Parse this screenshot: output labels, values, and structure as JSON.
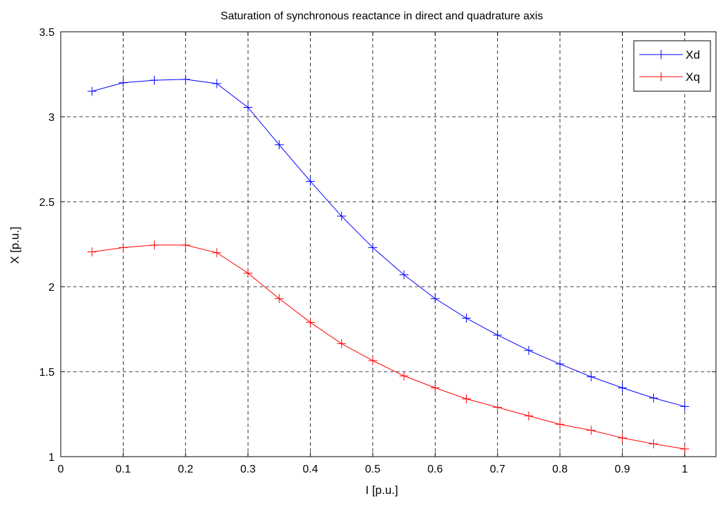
{
  "chart_data": {
    "type": "line",
    "title": "Saturation of synchronous reactance in direct and quadrature axis",
    "xlabel": "I [p.u.]",
    "ylabel": "X [p.u.]",
    "xlim": [
      0,
      1.05
    ],
    "ylim": [
      1,
      3.5
    ],
    "xticks": [
      "0",
      "0.1",
      "0.2",
      "0.3",
      "0.4",
      "0.5",
      "0.6",
      "0.7",
      "0.8",
      "0.9",
      "1"
    ],
    "yticks": [
      "1",
      "1.5",
      "2",
      "2.5",
      "3",
      "3.5"
    ],
    "xtick_values": [
      0,
      0.1,
      0.2,
      0.3,
      0.4,
      0.5,
      0.6,
      0.7,
      0.8,
      0.9,
      1.0
    ],
    "ytick_values": [
      1,
      1.5,
      2,
      2.5,
      3,
      3.5
    ],
    "grid": true,
    "legend_position": "top-right",
    "marker": "+",
    "x": [
      0.05,
      0.1,
      0.15,
      0.2,
      0.25,
      0.3,
      0.35,
      0.4,
      0.45,
      0.5,
      0.55,
      0.6,
      0.65,
      0.7,
      0.75,
      0.8,
      0.85,
      0.9,
      0.95,
      1.0
    ],
    "series": [
      {
        "name": "Xd",
        "color": "#0000ff",
        "values": [
          3.15,
          3.2,
          3.215,
          3.22,
          3.195,
          3.055,
          2.835,
          2.62,
          2.415,
          2.23,
          2.07,
          1.93,
          1.815,
          1.715,
          1.625,
          1.545,
          1.47,
          1.405,
          1.345,
          1.295
        ]
      },
      {
        "name": "Xq",
        "color": "#ff0000",
        "values": [
          2.205,
          2.23,
          2.245,
          2.245,
          2.2,
          2.08,
          1.93,
          1.79,
          1.665,
          1.565,
          1.475,
          1.405,
          1.34,
          1.29,
          1.24,
          1.19,
          1.155,
          1.11,
          1.075,
          1.045
        ]
      }
    ]
  }
}
